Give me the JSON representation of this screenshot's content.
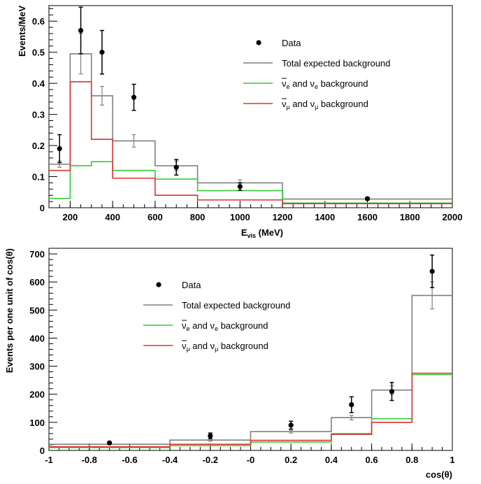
{
  "chart_data": [
    {
      "type": "step-histogram",
      "xlabel": "E_vis (MeV)",
      "xlabel_main": "E",
      "xlabel_sub": "vis",
      "xlabel_rest": " (MeV)",
      "ylabel": "Events/MeV",
      "xlim": [
        100,
        2000
      ],
      "ylim": [
        0,
        0.65
      ],
      "x_ticks": [
        200,
        400,
        600,
        800,
        1000,
        1200,
        1400,
        1600,
        1800,
        2000
      ],
      "x_tick_labels": [
        "200",
        "400",
        "600",
        "800",
        "1000",
        "1200",
        "1400",
        "1600",
        "1800",
        "2000"
      ],
      "y_ticks": [
        0,
        0.1,
        0.2,
        0.3,
        0.4,
        0.5,
        0.6
      ],
      "y_tick_labels": [
        "0",
        "0.1",
        "0.2",
        "0.3",
        "0.4",
        "0.5",
        "0.6"
      ],
      "bin_edges": [
        100,
        200,
        300,
        400,
        600,
        800,
        1200,
        2000
      ],
      "series": [
        {
          "name": "Total expected background",
          "color": "#808080",
          "kind": "step",
          "values": [
            0.14,
            0.495,
            0.36,
            0.215,
            0.135,
            0.08,
            0.028
          ],
          "errors": [
            0.01,
            0.065,
            0.03,
            0.02,
            0.015,
            0.01,
            0.003
          ]
        },
        {
          "name": "ν̄e and νe background",
          "color": "#33cc33",
          "kind": "step",
          "values": [
            0.03,
            0.135,
            0.148,
            0.12,
            0.092,
            0.055,
            0.015
          ]
        },
        {
          "name": "ν̄μ and νμ background",
          "color": "#dd3333",
          "kind": "step",
          "values": [
            0.12,
            0.405,
            0.22,
            0.095,
            0.04,
            0.025,
            0.013
          ]
        },
        {
          "name": "Data",
          "color": "#000000",
          "kind": "points",
          "x": [
            150,
            250,
            350,
            500,
            700,
            1000,
            1600
          ],
          "values": [
            0.19,
            0.57,
            0.5,
            0.355,
            0.13,
            0.068,
            0.029
          ],
          "errors": [
            0.045,
            0.075,
            0.07,
            0.042,
            0.025,
            0.012,
            0.004
          ]
        }
      ],
      "legend": [
        {
          "label": "Data",
          "kind": "point",
          "color": "#000000"
        },
        {
          "label": "Total expected background",
          "kind": "line",
          "color": "#808080"
        },
        {
          "label": "ν̄e and νe background",
          "kind": "line",
          "color": "#33cc33",
          "sym": "ν",
          "rest": " and ν",
          "sub": "e",
          "tail": " background"
        },
        {
          "label": "ν̄μ and νμ background",
          "kind": "line",
          "color": "#dd3333",
          "sym": "ν",
          "rest": " and ν",
          "sub": "μ",
          "tail": " background"
        }
      ],
      "legend_position": "top-right"
    },
    {
      "type": "step-histogram",
      "xlabel": "cos(θ)",
      "ylabel": "Events per one unit of cos(θ)",
      "xlim": [
        -1,
        1
      ],
      "ylim": [
        0,
        720
      ],
      "x_ticks": [
        -1,
        -0.8,
        -0.6,
        -0.4,
        -0.2,
        0,
        0.2,
        0.4,
        0.6,
        0.8,
        1
      ],
      "x_tick_labels": [
        "-1",
        "-0.8",
        "-0.6",
        "-0.4",
        "-0.2",
        "-0",
        "0.2",
        "0.4",
        "0.6",
        "0.8",
        "1"
      ],
      "y_ticks": [
        0,
        100,
        200,
        300,
        400,
        500,
        600,
        700
      ],
      "y_tick_labels": [
        "0",
        "100",
        "200",
        "300",
        "400",
        "500",
        "600",
        "700"
      ],
      "bin_edges": [
        -1,
        -0.4,
        0,
        0.4,
        0.6,
        0.8,
        1
      ],
      "series": [
        {
          "name": "Total expected background",
          "color": "#808080",
          "kind": "step",
          "values": [
            22,
            37,
            67,
            117,
            215,
            552
          ],
          "errors": [
            2,
            4,
            5,
            8,
            15,
            48
          ]
        },
        {
          "name": "ν̄e and νe background",
          "color": "#33cc33",
          "kind": "step",
          "values": [
            10,
            17,
            30,
            60,
            113,
            270
          ]
        },
        {
          "name": "ν̄μ and νμ background",
          "color": "#dd3333",
          "kind": "step",
          "values": [
            13,
            22,
            36,
            57,
            100,
            275
          ]
        },
        {
          "name": "Data",
          "color": "#000000",
          "kind": "points",
          "x": [
            -0.7,
            -0.2,
            0.2,
            0.5,
            0.7,
            0.9
          ],
          "values": [
            27,
            52,
            90,
            163,
            210,
            638
          ],
          "errors": [
            4,
            10,
            14,
            28,
            32,
            58
          ]
        }
      ],
      "legend": [
        {
          "label": "Data",
          "kind": "point",
          "color": "#000000"
        },
        {
          "label": "Total expected background",
          "kind": "line",
          "color": "#808080"
        },
        {
          "label": "ν̄e and νe background",
          "kind": "line",
          "color": "#33cc33",
          "sym": "ν",
          "rest": " and ν",
          "sub": "e",
          "tail": " background"
        },
        {
          "label": "ν̄μ and νμ background",
          "kind": "line",
          "color": "#dd3333",
          "sym": "ν",
          "rest": " and ν",
          "sub": "μ",
          "tail": " background"
        }
      ],
      "legend_position": "top-left-center"
    }
  ]
}
